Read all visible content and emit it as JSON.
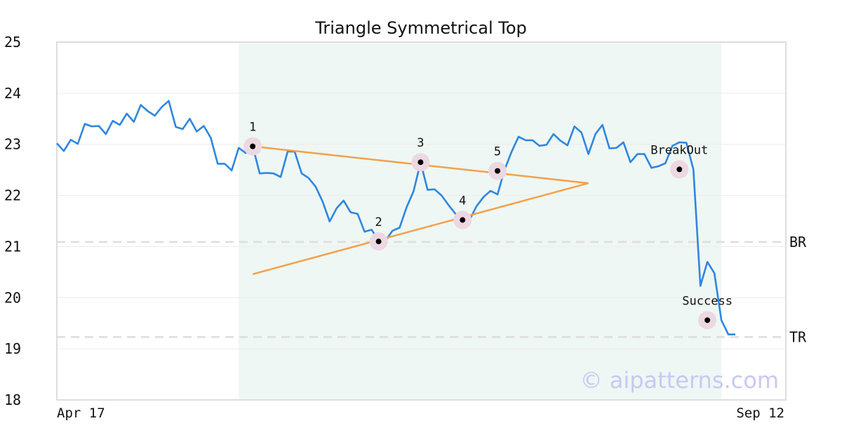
{
  "chart_data": {
    "type": "line",
    "title": "Triangle Symmetrical Top",
    "xlabel": "",
    "ylabel": "",
    "ylim": [
      18,
      25
    ],
    "y_ticks": [
      18,
      19,
      20,
      21,
      22,
      23,
      24,
      25
    ],
    "x_tick_labels": [
      "Apr 17",
      "Sep 12"
    ],
    "grid": true,
    "legend": "none",
    "watermark": "© aipatterns.com",
    "colors": {
      "price": "#2f86e0",
      "trendline": "#f5a04a",
      "pattern_region": "#eef7f3",
      "marker_halo": "#ecd8e2",
      "level_line": "#dddddd",
      "watermark": "#c9c9f3"
    },
    "pattern_region": {
      "start_index": 26,
      "end_index": 95
    },
    "series": [
      {
        "values": [
          23.02,
          22.87,
          23.09,
          23.01,
          23.4,
          23.35,
          23.36,
          23.2,
          23.46,
          23.38,
          23.6,
          23.44,
          23.77,
          23.65,
          23.56,
          23.73,
          23.85,
          23.34,
          23.3,
          23.5,
          23.25,
          23.36,
          23.13,
          22.62,
          22.62,
          22.49,
          22.93,
          22.83,
          22.97,
          22.43,
          22.44,
          22.43,
          22.36,
          22.86,
          22.86,
          22.43,
          22.34,
          22.17,
          21.88,
          21.49,
          21.75,
          21.9,
          21.67,
          21.64,
          21.29,
          21.33,
          21.12,
          21.12,
          21.31,
          21.37,
          21.77,
          22.08,
          22.65,
          22.11,
          22.12,
          22.0,
          21.81,
          21.64,
          21.52,
          21.52,
          21.79,
          21.97,
          22.09,
          22.02,
          22.5,
          22.85,
          23.15,
          23.08,
          23.08,
          22.97,
          22.99,
          23.2,
          23.07,
          22.98,
          23.35,
          23.23,
          22.81,
          23.2,
          23.38,
          22.92,
          22.93,
          23.04,
          22.65,
          22.81,
          22.81,
          22.54,
          22.57,
          22.63,
          22.97,
          23.04,
          23.03,
          22.51,
          20.23,
          20.7,
          20.48,
          19.56,
          19.28,
          19.28
        ]
      }
    ],
    "trendlines": [
      {
        "from": [
          28,
          22.96
        ],
        "to": [
          76,
          22.24
        ]
      },
      {
        "from": [
          28,
          20.46
        ],
        "to": [
          76,
          22.24
        ]
      }
    ],
    "levels": [
      {
        "label": "BR",
        "value": 21.09
      },
      {
        "label": "TR",
        "value": 19.23
      }
    ],
    "annotations": [
      {
        "label": "1",
        "index": 28,
        "value": 22.96,
        "label_pos": "above"
      },
      {
        "label": "2",
        "index": 46,
        "value": 21.1,
        "label_pos": "above"
      },
      {
        "label": "3",
        "index": 52,
        "value": 22.65,
        "label_pos": "above"
      },
      {
        "label": "4",
        "index": 58,
        "value": 21.52,
        "label_pos": "above"
      },
      {
        "label": "5",
        "index": 63,
        "value": 22.48,
        "label_pos": "above"
      },
      {
        "label": "BreakOut",
        "index": 89,
        "value": 22.51,
        "label_pos": "above"
      },
      {
        "label": "Success",
        "index": 93,
        "value": 19.56,
        "label_pos": "above"
      }
    ]
  }
}
